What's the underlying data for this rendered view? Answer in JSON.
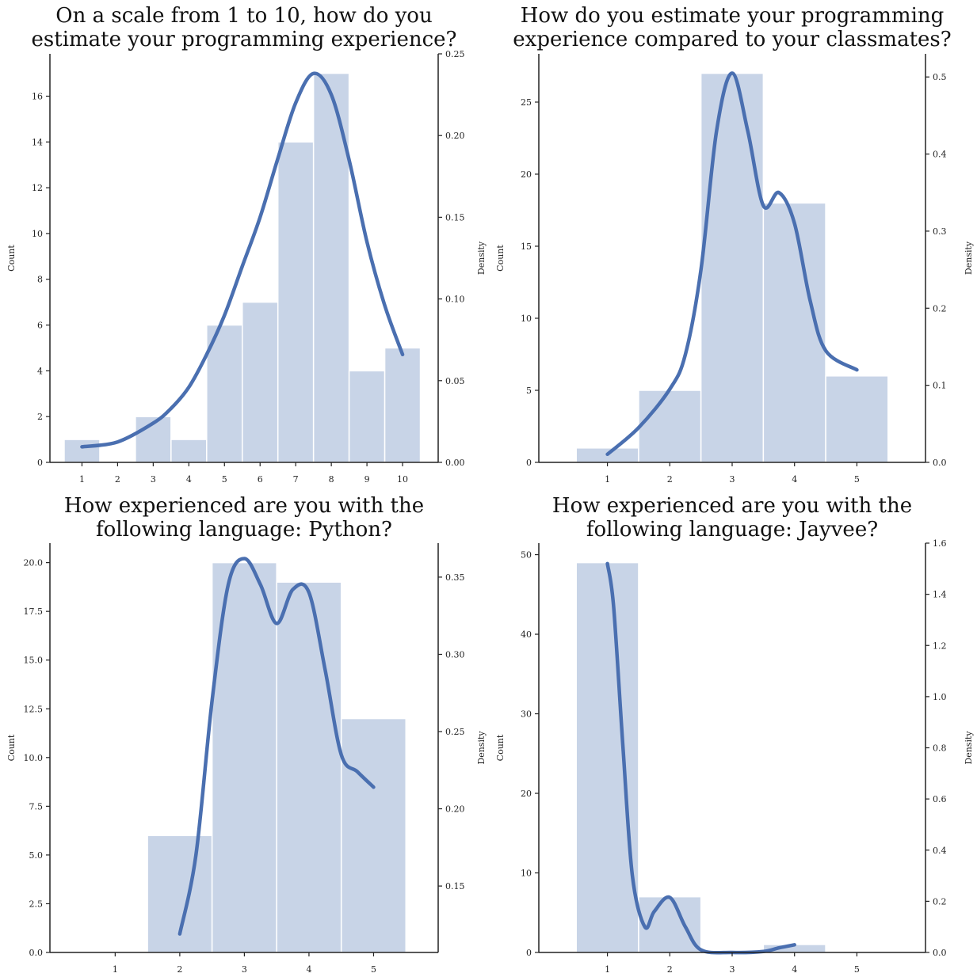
{
  "colors": {
    "bar": "#c8d4e7",
    "kde": "#4a6fb0"
  },
  "chart_data": [
    {
      "type": "bar",
      "title": [
        "On a scale from 1 to 10, how do you",
        "estimate your programming experience?"
      ],
      "ylabel": "Count",
      "y2label": "Density",
      "x_ticks": [
        "1",
        "2",
        "3",
        "4",
        "5",
        "6",
        "7",
        "8",
        "9",
        "10"
      ],
      "xlim": [
        0.1,
        11.0
      ],
      "ylim": [
        0,
        17.85
      ],
      "y_ticks": [
        "0",
        "2",
        "4",
        "6",
        "8",
        "10",
        "12",
        "14",
        "16"
      ],
      "y2lim": [
        0,
        0.25
      ],
      "y2_ticks": [
        "0.00",
        "0.05",
        "0.10",
        "0.15",
        "0.20",
        "0.25"
      ],
      "bars": [
        {
          "x0": 0.5,
          "x1": 1.5,
          "count": 1
        },
        {
          "x0": 1.5,
          "x1": 2.5,
          "count": 0
        },
        {
          "x0": 2.5,
          "x1": 3.5,
          "count": 2
        },
        {
          "x0": 3.5,
          "x1": 4.5,
          "count": 1
        },
        {
          "x0": 4.5,
          "x1": 5.5,
          "count": 6
        },
        {
          "x0": 5.5,
          "x1": 6.5,
          "count": 7
        },
        {
          "x0": 6.5,
          "x1": 7.5,
          "count": 14
        },
        {
          "x0": 7.5,
          "x1": 8.5,
          "count": 17
        },
        {
          "x0": 8.5,
          "x1": 9.5,
          "count": 4
        },
        {
          "x0": 9.5,
          "x1": 10.5,
          "count": 5
        }
      ],
      "kde": [
        [
          1,
          0.0095
        ],
        [
          2,
          0.0125
        ],
        [
          3,
          0.024
        ],
        [
          3.5,
          0.033
        ],
        [
          4,
          0.046
        ],
        [
          4.5,
          0.066
        ],
        [
          5,
          0.09
        ],
        [
          5.5,
          0.12
        ],
        [
          6,
          0.15
        ],
        [
          6.5,
          0.186
        ],
        [
          7,
          0.22
        ],
        [
          7.5,
          0.238
        ],
        [
          8,
          0.225
        ],
        [
          8.5,
          0.185
        ],
        [
          9,
          0.135
        ],
        [
          9.5,
          0.096
        ],
        [
          10,
          0.066
        ]
      ]
    },
    {
      "type": "bar",
      "title": [
        "How do you estimate your programming",
        "experience compared to your classmates?"
      ],
      "ylabel": "Count",
      "y2label": "Density",
      "x_ticks": [
        "1",
        "2",
        "3",
        "4",
        "5"
      ],
      "xlim": [
        -0.1,
        6.1
      ],
      "ylim": [
        0,
        28.35
      ],
      "y_ticks": [
        "0",
        "5",
        "10",
        "15",
        "20",
        "25"
      ],
      "y2lim": [
        0,
        0.53
      ],
      "y2_ticks": [
        "0.0",
        "0.1",
        "0.2",
        "0.3",
        "0.4",
        "0.5"
      ],
      "bars": [
        {
          "x0": 0.5,
          "x1": 1.5,
          "count": 1
        },
        {
          "x0": 1.5,
          "x1": 2.5,
          "count": 5
        },
        {
          "x0": 2.5,
          "x1": 3.5,
          "count": 27
        },
        {
          "x0": 3.5,
          "x1": 4.5,
          "count": 18
        },
        {
          "x0": 4.5,
          "x1": 5.5,
          "count": 6
        }
      ],
      "kde": [
        [
          1,
          0.0105
        ],
        [
          1.5,
          0.045
        ],
        [
          2,
          0.095
        ],
        [
          2.25,
          0.14
        ],
        [
          2.5,
          0.25
        ],
        [
          2.75,
          0.43
        ],
        [
          3,
          0.505
        ],
        [
          3.25,
          0.43
        ],
        [
          3.5,
          0.333
        ],
        [
          3.75,
          0.35
        ],
        [
          4,
          0.31
        ],
        [
          4.25,
          0.21
        ],
        [
          4.5,
          0.145
        ],
        [
          5,
          0.12
        ]
      ]
    },
    {
      "type": "bar",
      "title": [
        "How experienced are you with the",
        "following language: Python?"
      ],
      "ylabel": "Count",
      "y2label": "Density",
      "x_ticks": [
        "1",
        "2",
        "3",
        "4",
        "5"
      ],
      "xlim": [
        -0.01,
        6.0
      ],
      "ylim": [
        0,
        21.0
      ],
      "y_ticks": [
        "0.0",
        "2.5",
        "5.0",
        "7.5",
        "10.0",
        "12.5",
        "15.0",
        "17.5",
        "20.0"
      ],
      "y2lim": [
        0.107,
        0.372
      ],
      "y2_ticks": [
        "0.15",
        "0.20",
        "0.25",
        "0.30",
        "0.35"
      ],
      "bars": [
        {
          "x0": 1.5,
          "x1": 2.5,
          "count": 6
        },
        {
          "x0": 2.5,
          "x1": 3.5,
          "count": 20
        },
        {
          "x0": 3.5,
          "x1": 4.5,
          "count": 19
        },
        {
          "x0": 4.5,
          "x1": 5.5,
          "count": 12
        }
      ],
      "kde": [
        [
          2,
          0.119
        ],
        [
          2.25,
          0.17
        ],
        [
          2.5,
          0.27
        ],
        [
          2.75,
          0.345
        ],
        [
          3,
          0.362
        ],
        [
          3.25,
          0.345
        ],
        [
          3.5,
          0.32
        ],
        [
          3.75,
          0.342
        ],
        [
          4,
          0.34
        ],
        [
          4.25,
          0.29
        ],
        [
          4.5,
          0.235
        ],
        [
          4.75,
          0.224
        ],
        [
          5,
          0.214
        ]
      ]
    },
    {
      "type": "bar",
      "title": [
        "How experienced are you with the",
        "following language: Jayvee?"
      ],
      "ylabel": "Count",
      "y2label": "Density",
      "x_ticks": [
        "1",
        "2",
        "3",
        "4",
        "5"
      ],
      "xlim": [
        -0.1,
        6.1
      ],
      "ylim": [
        0,
        51.45
      ],
      "y_ticks": [
        "0",
        "10",
        "20",
        "30",
        "40",
        "50"
      ],
      "y2lim": [
        0,
        1.6
      ],
      "y2_ticks": [
        "0.0",
        "0.2",
        "0.4",
        "0.6",
        "0.8",
        "1.0",
        "1.2",
        "1.4",
        "1.6"
      ],
      "bars": [
        {
          "x0": 0.5,
          "x1": 1.5,
          "count": 49
        },
        {
          "x0": 1.5,
          "x1": 2.5,
          "count": 7
        },
        {
          "x0": 3.5,
          "x1": 4.5,
          "count": 1
        }
      ],
      "kde": [
        [
          1,
          1.52
        ],
        [
          1.1,
          1.35
        ],
        [
          1.25,
          0.8
        ],
        [
          1.4,
          0.3
        ],
        [
          1.6,
          0.1
        ],
        [
          1.75,
          0.16
        ],
        [
          2,
          0.215
        ],
        [
          2.25,
          0.1
        ],
        [
          2.5,
          0.01
        ],
        [
          3,
          0.0
        ],
        [
          3.5,
          0.004
        ],
        [
          3.75,
          0.018
        ],
        [
          4,
          0.03
        ]
      ]
    }
  ]
}
